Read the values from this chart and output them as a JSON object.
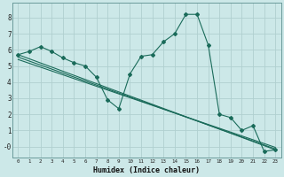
{
  "xlabel": "Humidex (Indice chaleur)",
  "background_color": "#cce8e8",
  "grid_color": "#b0d0d0",
  "line_color": "#1a6b5a",
  "xlim": [
    -0.5,
    23.5
  ],
  "ylim": [
    -0.7,
    8.9
  ],
  "xticks": [
    0,
    1,
    2,
    3,
    4,
    5,
    6,
    7,
    8,
    9,
    10,
    11,
    12,
    13,
    14,
    15,
    16,
    17,
    18,
    19,
    20,
    21,
    22,
    23
  ],
  "yticks": [
    0,
    1,
    2,
    3,
    4,
    5,
    6,
    7,
    8
  ],
  "ytick_labels": [
    "-0",
    "1",
    "2",
    "3",
    "4",
    "5",
    "6",
    "7",
    "8"
  ],
  "series1_x": [
    0,
    1,
    2,
    3,
    4,
    5,
    6,
    7,
    8,
    9,
    10,
    11,
    12,
    13,
    14,
    15,
    16,
    17,
    18,
    19,
    20,
    21,
    22,
    23
  ],
  "series1_y": [
    5.7,
    5.9,
    6.2,
    5.9,
    5.5,
    5.2,
    5.0,
    4.3,
    2.9,
    2.35,
    4.5,
    5.6,
    5.7,
    6.5,
    7.0,
    8.2,
    8.2,
    6.3,
    2.0,
    1.8,
    1.0,
    1.3,
    -0.3,
    -0.2
  ],
  "line2_x0": 0,
  "line2_x1": 23,
  "line2_y0": 5.7,
  "line2_y1": -0.2,
  "line3_x0": 0,
  "line3_x1": 23,
  "line3_y0": 5.55,
  "line3_y1": -0.15,
  "line4_x0": 0,
  "line4_x1": 23,
  "line4_y0": 5.4,
  "line4_y1": -0.05
}
